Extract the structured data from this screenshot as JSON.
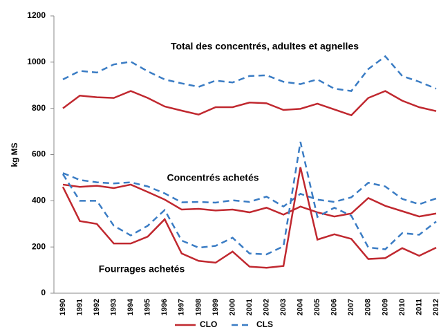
{
  "chart_data": {
    "type": "line",
    "y_label": "kg MS",
    "annotations": [
      "Total des concentrés, adultes et agnelles",
      "Concentrés achetés",
      "Fourrages achetés"
    ],
    "categories": [
      "1990",
      "1991",
      "1992",
      "1993",
      "1994",
      "1995",
      "1996",
      "1997",
      "1998",
      "1999",
      "2000",
      "2001",
      "2002",
      "2003",
      "2004",
      "2005",
      "2006",
      "2007",
      "2008",
      "2009",
      "2010",
      "2011",
      "2012"
    ],
    "legend": [
      {
        "name": "CLO",
        "color": "#c0282f",
        "dashed": false
      },
      {
        "name": "CLS",
        "color": "#3a7cc4",
        "dashed": true
      }
    ],
    "series": [
      {
        "legend": 0,
        "values": [
          800,
          855,
          848,
          845,
          875,
          845,
          808,
          790,
          773,
          805,
          805,
          825,
          822,
          793,
          798,
          820,
          795,
          770,
          845,
          875,
          833,
          805,
          788
        ]
      },
      {
        "legend": 1,
        "values": [
          925,
          962,
          955,
          990,
          1002,
          960,
          925,
          908,
          893,
          920,
          912,
          940,
          943,
          915,
          905,
          925,
          885,
          875,
          970,
          1025,
          940,
          915,
          885
        ]
      },
      {
        "legend": 0,
        "values": [
          470,
          460,
          465,
          455,
          470,
          438,
          405,
          362,
          365,
          358,
          362,
          350,
          370,
          340,
          375,
          350,
          332,
          345,
          412,
          378,
          355,
          332,
          345
        ]
      },
      {
        "legend": 1,
        "values": [
          520,
          490,
          480,
          475,
          480,
          462,
          432,
          393,
          395,
          392,
          402,
          395,
          418,
          375,
          430,
          405,
          395,
          415,
          478,
          462,
          408,
          385,
          410
        ]
      },
      {
        "legend": 0,
        "values": [
          460,
          312,
          300,
          215,
          215,
          245,
          320,
          172,
          140,
          132,
          180,
          115,
          110,
          118,
          545,
          232,
          255,
          235,
          148,
          152,
          195,
          162,
          197
        ]
      },
      {
        "legend": 1,
        "values": [
          515,
          400,
          400,
          292,
          250,
          292,
          360,
          228,
          197,
          205,
          240,
          172,
          168,
          203,
          655,
          330,
          370,
          335,
          198,
          190,
          260,
          253,
          310
        ]
      }
    ],
    "ylim": [
      0,
      1200
    ],
    "yticks": [
      0,
      200,
      400,
      600,
      800,
      1000,
      1200
    ]
  }
}
